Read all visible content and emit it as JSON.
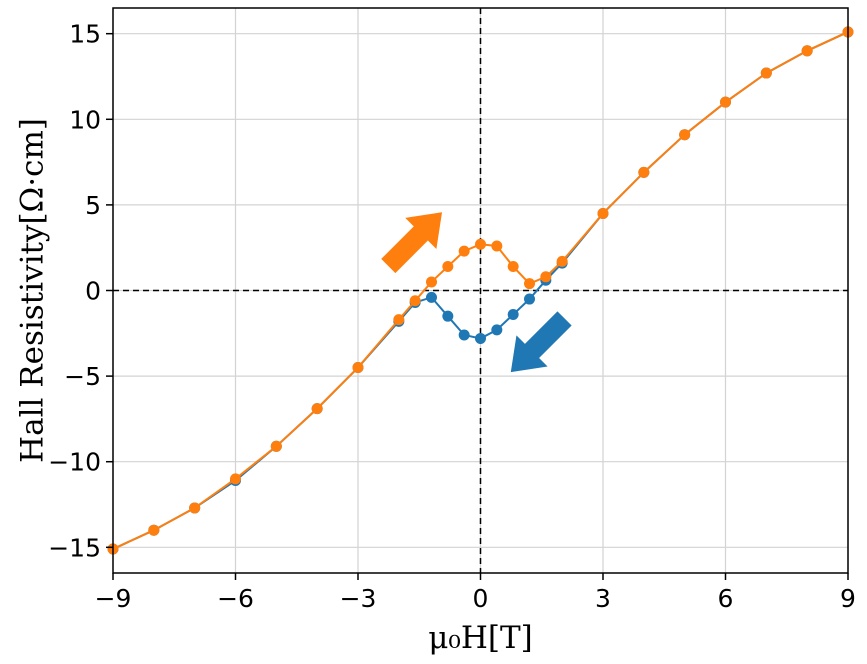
{
  "chart_data": {
    "type": "line",
    "xlabel": "μ₀H[T]",
    "ylabel": "Hall Resistivity[Ω·cm]",
    "xlim": [
      -9,
      9
    ],
    "ylim": [
      -16.5,
      16.5
    ],
    "xticks": [
      -9,
      -6,
      -3,
      0,
      3,
      6,
      9
    ],
    "yticks": [
      -15,
      -10,
      -5,
      0,
      5,
      10,
      15
    ],
    "xtick_labels": [
      "−9",
      "−6",
      "−3",
      "0",
      "3",
      "6",
      "9"
    ],
    "ytick_labels": [
      "−15",
      "−10",
      "−5",
      "0",
      "5",
      "10",
      "15"
    ],
    "grid": true,
    "zero_lines": "dashed",
    "colors": {
      "sweep_down": "#1f77b4",
      "sweep_up": "#ff7f0e"
    },
    "series": [
      {
        "color": "#1f77b4",
        "arrow": "down-left",
        "x": [
          -9,
          -8,
          -7,
          -6,
          -5,
          -4,
          -3,
          -2,
          -1.6,
          -1.2,
          -0.8,
          -0.4,
          0,
          0.4,
          0.8,
          1.2,
          1.6,
          2,
          3,
          4,
          5,
          6,
          7,
          8,
          9
        ],
        "y": [
          -15.1,
          -14.0,
          -12.7,
          -11.1,
          -9.1,
          -6.9,
          -4.5,
          -1.8,
          -0.7,
          -0.4,
          -1.5,
          -2.6,
          -2.8,
          -2.3,
          -1.4,
          -0.5,
          0.6,
          1.6,
          4.5,
          6.9,
          9.1,
          11.0,
          12.7,
          14.0,
          15.1
        ]
      },
      {
        "color": "#ff7f0e",
        "arrow": "up-right",
        "x": [
          -9,
          -8,
          -7,
          -6,
          -5,
          -4,
          -3,
          -2,
          -1.6,
          -1.2,
          -0.8,
          -0.4,
          0,
          0.4,
          0.8,
          1.2,
          1.6,
          2,
          3,
          4,
          5,
          6,
          7,
          8,
          9
        ],
        "y": [
          -15.1,
          -14.0,
          -12.7,
          -11.0,
          -9.1,
          -6.9,
          -4.5,
          -1.7,
          -0.6,
          0.5,
          1.4,
          2.3,
          2.7,
          2.6,
          1.4,
          0.4,
          0.8,
          1.7,
          4.5,
          6.9,
          9.1,
          11.0,
          12.7,
          14.0,
          15.1
        ]
      }
    ]
  }
}
